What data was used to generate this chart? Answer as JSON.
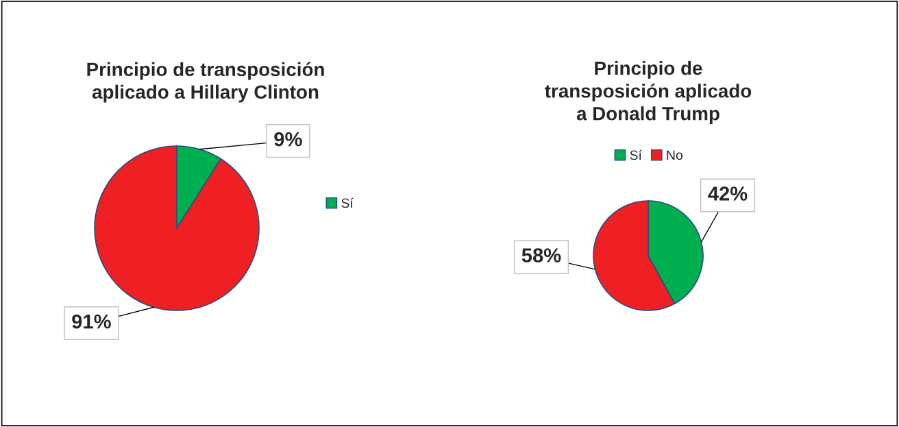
{
  "chart_data": [
    {
      "type": "pie",
      "title": "Principio de transposición\naplicado a Hillary Clinton",
      "categories": [
        "Sí",
        null
      ],
      "values": [
        9,
        91
      ],
      "colors": [
        "#00b050",
        "#ee2024"
      ],
      "value_labels": [
        "9%",
        "91%"
      ],
      "legend": "right"
    },
    {
      "type": "pie",
      "title": "Principio de\ntransposición aplicado\na Donald Trump",
      "categories": [
        "Sí",
        "No"
      ],
      "values": [
        42,
        58
      ],
      "colors": [
        "#00b050",
        "#ee2024"
      ],
      "value_labels": [
        "42%",
        "58%"
      ],
      "legend": "top"
    }
  ]
}
